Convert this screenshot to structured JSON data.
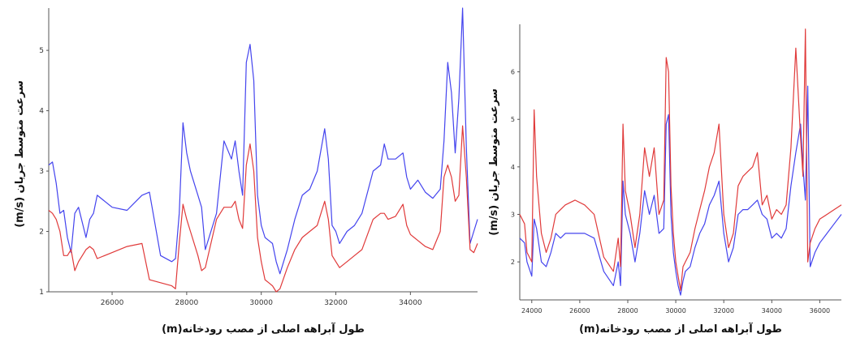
{
  "chart_data": [
    {
      "type": "line",
      "title": "",
      "xlabel": "طول آبراهه اصلی از مصب رودخانه(m)",
      "ylabel": "سرعت متوسط جریان (m/s)",
      "xlim": [
        24300,
        35800
      ],
      "ylim": [
        1,
        5.7
      ],
      "xticks": [
        26000,
        28000,
        30000,
        32000,
        34000
      ],
      "yticks": [
        1,
        2,
        3,
        4,
        5
      ],
      "grid": false,
      "colors": [
        "#4444ee",
        "#e03a3a"
      ],
      "series": [
        {
          "x": [
            24300,
            24400,
            24500,
            24600,
            24700,
            24800,
            24900,
            25000,
            25100,
            25300,
            25400,
            25500,
            25600,
            26000,
            26400,
            26800,
            27000,
            27300,
            27600,
            27700,
            27800,
            27900,
            28000,
            28100,
            28300,
            28400,
            28500,
            28800,
            29000,
            29200,
            29300,
            29400,
            29500,
            29600,
            29700,
            29800,
            29900,
            30000,
            30100,
            30200,
            30300,
            30400,
            30500,
            30700,
            30900,
            31100,
            31300,
            31500,
            31700,
            31800,
            31900,
            32000,
            32100,
            32300,
            32500,
            32700,
            33000,
            33200,
            33300,
            33400,
            33600,
            33800,
            33900,
            34000,
            34200,
            34400,
            34600,
            34800,
            34900,
            35000,
            35100,
            35200,
            35300,
            35400,
            35500,
            35600,
            35700,
            35800
          ],
          "values": [
            3.1,
            3.15,
            2.8,
            2.3,
            2.35,
            1.9,
            1.65,
            2.3,
            2.4,
            1.9,
            2.2,
            2.3,
            2.6,
            2.4,
            2.35,
            2.6,
            2.65,
            1.6,
            1.5,
            1.55,
            2.3,
            3.8,
            3.3,
            3.0,
            2.6,
            2.4,
            1.7,
            2.3,
            3.5,
            3.2,
            3.5,
            3.0,
            2.6,
            4.8,
            5.1,
            4.5,
            2.6,
            2.1,
            1.9,
            1.85,
            1.8,
            1.5,
            1.3,
            1.7,
            2.2,
            2.6,
            2.7,
            3.0,
            3.7,
            3.2,
            2.1,
            2.0,
            1.8,
            2.0,
            2.1,
            2.3,
            3.0,
            3.1,
            3.45,
            3.2,
            3.2,
            3.3,
            2.9,
            2.7,
            2.85,
            2.65,
            2.55,
            2.7,
            3.5,
            4.8,
            4.3,
            3.3,
            4.2,
            5.7,
            3.4,
            1.8,
            2.0,
            2.2
          ]
        },
        {
          "x": [
            24300,
            24400,
            24500,
            24600,
            24700,
            24800,
            24900,
            25000,
            25100,
            25300,
            25400,
            25500,
            25600,
            26000,
            26400,
            26800,
            27000,
            27300,
            27600,
            27700,
            27800,
            27900,
            28000,
            28100,
            28300,
            28400,
            28500,
            28800,
            29000,
            29200,
            29300,
            29400,
            29500,
            29600,
            29700,
            29800,
            29900,
            30000,
            30100,
            30200,
            30300,
            30400,
            30500,
            30700,
            30900,
            31100,
            31300,
            31500,
            31700,
            31800,
            31900,
            32000,
            32100,
            32300,
            32500,
            32700,
            33000,
            33200,
            33300,
            33400,
            33600,
            33800,
            33900,
            34000,
            34200,
            34400,
            34600,
            34800,
            34900,
            35000,
            35100,
            35200,
            35300,
            35400,
            35500,
            35600,
            35700,
            35800
          ],
          "values": [
            2.35,
            2.3,
            2.2,
            2.0,
            1.6,
            1.6,
            1.7,
            1.35,
            1.5,
            1.7,
            1.75,
            1.7,
            1.55,
            1.65,
            1.75,
            1.8,
            1.2,
            1.15,
            1.1,
            1.05,
            1.8,
            2.45,
            2.2,
            2.0,
            1.6,
            1.35,
            1.4,
            2.2,
            2.4,
            2.4,
            2.5,
            2.2,
            2.05,
            3.1,
            3.45,
            3.0,
            1.9,
            1.5,
            1.2,
            1.15,
            1.1,
            1.0,
            1.05,
            1.4,
            1.7,
            1.9,
            2.0,
            2.1,
            2.5,
            2.2,
            1.6,
            1.5,
            1.4,
            1.5,
            1.6,
            1.7,
            2.2,
            2.3,
            2.3,
            2.2,
            2.25,
            2.45,
            2.1,
            1.95,
            1.85,
            1.75,
            1.7,
            2.0,
            2.9,
            3.1,
            2.9,
            2.5,
            2.6,
            3.75,
            2.9,
            1.7,
            1.65,
            1.8
          ]
        }
      ]
    },
    {
      "type": "line",
      "title": "",
      "xlabel": "طول آبراهه اصلی از مصب رودخانه(m)",
      "ylabel": "سرعت متوسط جریان (m/s)",
      "xlim": [
        23500,
        36900
      ],
      "ylim": [
        1.2,
        7
      ],
      "xticks": [
        24000,
        26000,
        28000,
        30000,
        32000,
        34000,
        36000
      ],
      "yticks": [
        2,
        3,
        4,
        5,
        6
      ],
      "grid": false,
      "colors": [
        "#4444ee",
        "#e03a3a"
      ],
      "series": [
        {
          "x": [
            23500,
            23700,
            23800,
            24000,
            24100,
            24200,
            24400,
            24600,
            24800,
            25000,
            25200,
            25400,
            25800,
            26200,
            26600,
            27000,
            27400,
            27600,
            27700,
            27800,
            27900,
            28100,
            28300,
            28500,
            28700,
            28900,
            29100,
            29300,
            29500,
            29600,
            29700,
            29800,
            29900,
            30000,
            30100,
            30200,
            30300,
            30400,
            30600,
            30800,
            31000,
            31200,
            31400,
            31600,
            31800,
            32000,
            32200,
            32400,
            32600,
            32800,
            33000,
            33200,
            33400,
            33600,
            33800,
            34000,
            34200,
            34400,
            34600,
            34800,
            35000,
            35200,
            35300,
            35400,
            35500,
            35600,
            35800,
            36000,
            36300,
            36600,
            36900
          ],
          "values": [
            2.5,
            2.4,
            2.0,
            1.7,
            2.9,
            2.7,
            2.0,
            1.9,
            2.2,
            2.6,
            2.5,
            2.6,
            2.6,
            2.6,
            2.5,
            1.8,
            1.5,
            2.0,
            1.5,
            3.7,
            3.0,
            2.6,
            2.0,
            2.6,
            3.5,
            3.0,
            3.4,
            2.6,
            2.7,
            4.9,
            5.1,
            3.0,
            2.2,
            1.8,
            1.5,
            1.3,
            1.6,
            1.8,
            1.9,
            2.3,
            2.6,
            2.8,
            3.2,
            3.4,
            3.7,
            2.6,
            2.0,
            2.3,
            3.0,
            3.1,
            3.1,
            3.2,
            3.3,
            3.0,
            2.9,
            2.5,
            2.6,
            2.5,
            2.7,
            3.6,
            4.3,
            4.9,
            4.0,
            3.3,
            5.7,
            1.9,
            2.2,
            2.4,
            2.6,
            2.8,
            3.0
          ]
        },
        {
          "x": [
            23500,
            23700,
            23800,
            24000,
            24100,
            24200,
            24400,
            24600,
            24800,
            25000,
            25200,
            25400,
            25800,
            26200,
            26600,
            27000,
            27400,
            27600,
            27700,
            27800,
            27900,
            28100,
            28300,
            28500,
            28700,
            28900,
            29100,
            29300,
            29500,
            29600,
            29700,
            29800,
            29900,
            30000,
            30100,
            30200,
            30300,
            30400,
            30600,
            30800,
            31000,
            31200,
            31400,
            31600,
            31800,
            32000,
            32200,
            32400,
            32600,
            32800,
            33000,
            33200,
            33400,
            33600,
            33800,
            34000,
            34200,
            34400,
            34600,
            34800,
            35000,
            35200,
            35300,
            35400,
            35500,
            35600,
            35800,
            36000,
            36300,
            36600,
            36900
          ],
          "values": [
            3.0,
            2.8,
            2.2,
            2.0,
            5.2,
            3.8,
            2.6,
            2.2,
            2.5,
            3.0,
            3.1,
            3.2,
            3.3,
            3.2,
            3.0,
            2.1,
            1.8,
            2.5,
            1.9,
            4.9,
            3.5,
            3.0,
            2.3,
            3.0,
            4.4,
            3.8,
            4.4,
            3.0,
            3.3,
            6.3,
            6.0,
            3.6,
            2.6,
            2.0,
            1.7,
            1.4,
            1.9,
            2.0,
            2.2,
            2.7,
            3.1,
            3.5,
            4.0,
            4.3,
            4.9,
            3.0,
            2.3,
            2.6,
            3.6,
            3.8,
            3.9,
            4.0,
            4.3,
            3.2,
            3.4,
            2.9,
            3.1,
            3.0,
            3.2,
            4.4,
            6.5,
            4.6,
            3.8,
            6.9,
            2.0,
            2.4,
            2.7,
            2.9,
            3.0,
            3.1,
            3.2
          ]
        }
      ]
    }
  ]
}
